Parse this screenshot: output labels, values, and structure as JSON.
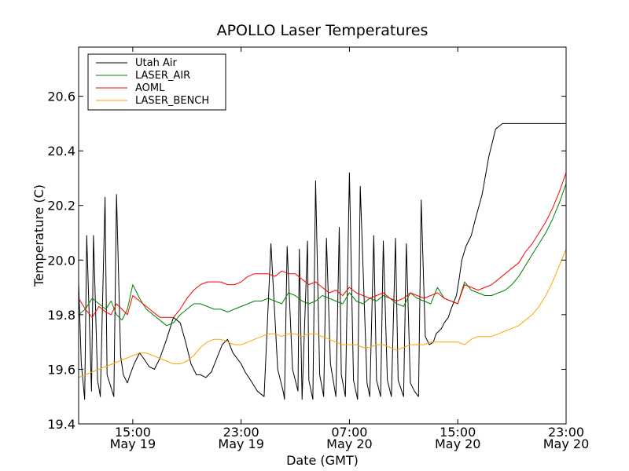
{
  "chart_data": {
    "type": "line",
    "title": "APOLLO Laser Temperatures",
    "xlabel": "Date (GMT)",
    "ylabel": "Temperature (C)",
    "xlim": [
      11.0,
      47.0
    ],
    "ylim": [
      19.4,
      20.78
    ],
    "yticks": [
      19.4,
      19.6,
      19.8,
      20.0,
      20.2,
      20.4,
      20.6
    ],
    "ytick_labels": [
      "19.4",
      "19.6",
      "19.8",
      "20.0",
      "20.2",
      "20.4",
      "20.6"
    ],
    "xticks": [
      {
        "pos": 15,
        "time": "15:00",
        "date": "May 19"
      },
      {
        "pos": 23,
        "time": "23:00",
        "date": "May 19"
      },
      {
        "pos": 31,
        "time": "07:00",
        "date": "May 20"
      },
      {
        "pos": 39,
        "time": "15:00",
        "date": "May 20"
      },
      {
        "pos": 47,
        "time": "23:00",
        "date": "May 20"
      }
    ],
    "legend_position": "top-left",
    "series": [
      {
        "name": "Utah Air",
        "color": "#000000",
        "x": [
          11.0,
          11.2,
          11.45,
          11.6,
          11.95,
          12.1,
          12.4,
          12.6,
          12.95,
          13.1,
          13.6,
          13.8,
          14.1,
          14.3,
          14.6,
          14.8,
          15.1,
          15.5,
          15.8,
          16.2,
          16.6,
          17.0,
          17.5,
          18.0,
          18.5,
          18.9,
          19.3,
          19.7,
          20.0,
          20.4,
          20.8,
          21.2,
          21.6,
          22.0,
          22.4,
          22.7,
          23.0,
          23.3,
          23.7,
          24.2,
          24.7,
          25.2,
          25.7,
          26.1,
          26.2,
          26.4,
          26.8,
          27.2,
          27.3,
          27.5,
          27.9,
          28.0,
          28.3,
          28.5,
          28.8,
          29.1,
          29.3,
          29.6,
          30.0,
          30.25,
          30.4,
          30.7,
          31.0,
          31.3,
          31.6,
          31.8,
          32.3,
          32.5,
          32.8,
          33.0,
          33.3,
          33.5,
          33.8,
          34.1,
          34.4,
          34.6,
          35.0,
          35.2,
          35.5,
          35.8,
          36.1,
          36.3,
          36.6,
          36.9,
          37.2,
          37.4,
          37.8,
          38.0,
          38.3,
          38.5,
          38.9,
          39.1,
          39.3,
          39.6,
          40.0,
          40.3,
          40.8,
          41.3,
          41.8,
          42.3,
          42.8,
          43.3,
          43.8,
          44.2,
          44.6,
          45.0,
          45.4,
          45.8,
          46.2,
          46.6,
          47.0
        ],
        "values": [
          19.92,
          19.62,
          19.49,
          20.09,
          19.52,
          20.09,
          19.56,
          19.5,
          20.23,
          19.58,
          19.5,
          20.24,
          19.65,
          19.58,
          19.55,
          19.58,
          19.62,
          19.66,
          19.64,
          19.61,
          19.6,
          19.64,
          19.71,
          19.79,
          19.77,
          19.7,
          19.62,
          19.58,
          19.58,
          19.57,
          19.59,
          19.64,
          19.69,
          19.71,
          19.66,
          19.64,
          19.62,
          19.59,
          19.56,
          19.52,
          19.5,
          20.06,
          19.6,
          19.52,
          19.49,
          20.05,
          19.6,
          19.52,
          20.04,
          19.49,
          20.07,
          19.56,
          19.49,
          20.29,
          19.58,
          19.5,
          20.08,
          19.62,
          19.5,
          20.12,
          19.58,
          19.5,
          20.32,
          19.56,
          19.49,
          20.27,
          19.55,
          19.5,
          20.09,
          19.56,
          19.5,
          20.07,
          19.56,
          19.5,
          20.08,
          19.56,
          19.5,
          20.06,
          19.55,
          19.52,
          19.5,
          20.22,
          19.72,
          19.69,
          19.7,
          19.73,
          19.75,
          19.77,
          19.79,
          19.82,
          19.87,
          19.93,
          20.0,
          20.05,
          20.09,
          20.15,
          20.24,
          20.38,
          20.48,
          20.5,
          20.5,
          20.5,
          20.5,
          20.5,
          20.5,
          20.5,
          20.5,
          20.5,
          20.5,
          20.5,
          20.5
        ]
      },
      {
        "name": "LASER_AIR",
        "color": "#008000",
        "x": [
          11.0,
          11.5,
          12.0,
          12.5,
          13.0,
          13.4,
          13.8,
          14.2,
          14.6,
          15.0,
          15.5,
          16.0,
          16.5,
          17.0,
          17.5,
          18.0,
          18.5,
          19.0,
          19.5,
          20.0,
          20.5,
          21.0,
          21.5,
          22.0,
          22.5,
          23.0,
          23.5,
          24.0,
          24.5,
          25.0,
          25.5,
          26.0,
          26.5,
          27.0,
          27.5,
          28.0,
          28.5,
          29.0,
          29.5,
          30.0,
          30.5,
          31.0,
          31.5,
          32.0,
          32.5,
          33.0,
          33.5,
          34.0,
          34.5,
          35.0,
          35.5,
          36.0,
          36.5,
          37.0,
          37.5,
          38.0,
          38.5,
          39.0,
          39.5,
          40.0,
          40.5,
          41.0,
          41.5,
          42.0,
          42.5,
          43.0,
          43.5,
          44.0,
          44.5,
          45.0,
          45.5,
          46.0,
          46.5,
          47.0
        ],
        "values": [
          19.8,
          19.82,
          19.86,
          19.84,
          19.82,
          19.85,
          19.8,
          19.78,
          19.82,
          19.91,
          19.86,
          19.82,
          19.8,
          19.78,
          19.76,
          19.77,
          19.8,
          19.82,
          19.84,
          19.84,
          19.83,
          19.82,
          19.82,
          19.81,
          19.82,
          19.83,
          19.84,
          19.85,
          19.85,
          19.86,
          19.85,
          19.84,
          19.88,
          19.87,
          19.85,
          19.84,
          19.85,
          19.87,
          19.86,
          19.85,
          19.84,
          19.88,
          19.85,
          19.84,
          19.86,
          19.85,
          19.87,
          19.86,
          19.84,
          19.83,
          19.88,
          19.86,
          19.85,
          19.84,
          19.9,
          19.86,
          19.85,
          19.84,
          19.92,
          19.89,
          19.88,
          19.87,
          19.87,
          19.88,
          19.89,
          19.91,
          19.94,
          19.98,
          20.02,
          20.06,
          20.1,
          20.15,
          20.21,
          20.28
        ]
      },
      {
        "name": "AOML",
        "color": "#ff0000",
        "x": [
          11.0,
          11.5,
          12.0,
          12.5,
          13.0,
          13.4,
          13.8,
          14.2,
          14.6,
          15.0,
          15.5,
          16.0,
          16.5,
          17.0,
          17.5,
          18.0,
          18.5,
          19.0,
          19.5,
          20.0,
          20.5,
          21.0,
          21.5,
          22.0,
          22.5,
          23.0,
          23.5,
          24.0,
          24.5,
          25.0,
          25.5,
          26.0,
          26.5,
          27.0,
          27.5,
          28.0,
          28.5,
          29.0,
          29.5,
          30.0,
          30.5,
          31.0,
          31.5,
          32.0,
          32.5,
          33.0,
          33.5,
          34.0,
          34.5,
          35.0,
          35.5,
          36.0,
          36.5,
          37.0,
          37.5,
          38.0,
          38.5,
          39.0,
          39.5,
          40.0,
          40.5,
          41.0,
          41.5,
          42.0,
          42.5,
          43.0,
          43.5,
          44.0,
          44.5,
          45.0,
          45.5,
          46.0,
          46.5,
          47.0
        ],
        "values": [
          19.86,
          19.82,
          19.79,
          19.83,
          19.81,
          19.8,
          19.84,
          19.82,
          19.8,
          19.87,
          19.85,
          19.83,
          19.81,
          19.79,
          19.79,
          19.79,
          19.82,
          19.86,
          19.89,
          19.91,
          19.92,
          19.92,
          19.92,
          19.91,
          19.91,
          19.92,
          19.94,
          19.95,
          19.95,
          19.95,
          19.94,
          19.96,
          19.95,
          19.95,
          19.93,
          19.91,
          19.92,
          19.9,
          19.88,
          19.89,
          19.87,
          19.9,
          19.88,
          19.87,
          19.86,
          19.87,
          19.88,
          19.86,
          19.85,
          19.86,
          19.88,
          19.87,
          19.86,
          19.87,
          19.88,
          19.86,
          19.85,
          19.84,
          19.91,
          19.9,
          19.89,
          19.9,
          19.91,
          19.93,
          19.95,
          19.97,
          19.99,
          20.03,
          20.06,
          20.1,
          20.14,
          20.19,
          20.25,
          20.32
        ]
      },
      {
        "name": "LASER_BENCH",
        "color": "#ffa500",
        "x": [
          11.0,
          11.5,
          12.0,
          12.5,
          13.0,
          13.5,
          14.0,
          14.5,
          15.0,
          15.5,
          16.0,
          16.5,
          17.0,
          17.5,
          18.0,
          18.5,
          19.0,
          19.5,
          20.0,
          20.5,
          21.0,
          21.5,
          22.0,
          22.5,
          23.0,
          23.5,
          24.0,
          24.5,
          25.0,
          25.5,
          26.0,
          26.5,
          27.0,
          27.5,
          28.0,
          28.5,
          29.0,
          29.5,
          30.0,
          30.5,
          31.0,
          31.5,
          32.0,
          32.5,
          33.0,
          33.5,
          34.0,
          34.5,
          35.0,
          35.5,
          36.0,
          36.5,
          37.0,
          37.5,
          38.0,
          38.5,
          39.0,
          39.5,
          40.0,
          40.5,
          41.0,
          41.5,
          42.0,
          42.5,
          43.0,
          43.5,
          44.0,
          44.5,
          45.0,
          45.5,
          46.0,
          46.5,
          47.0
        ],
        "values": [
          19.57,
          19.58,
          19.59,
          19.6,
          19.61,
          19.62,
          19.63,
          19.64,
          19.65,
          19.66,
          19.66,
          19.65,
          19.64,
          19.63,
          19.62,
          19.62,
          19.63,
          19.65,
          19.68,
          19.7,
          19.71,
          19.71,
          19.7,
          19.69,
          19.69,
          19.7,
          19.71,
          19.72,
          19.73,
          19.73,
          19.72,
          19.73,
          19.73,
          19.72,
          19.73,
          19.73,
          19.72,
          19.71,
          19.7,
          19.69,
          19.69,
          19.69,
          19.68,
          19.68,
          19.69,
          19.69,
          19.68,
          19.67,
          19.68,
          19.69,
          19.69,
          19.69,
          19.7,
          19.7,
          19.7,
          19.7,
          19.7,
          19.69,
          19.71,
          19.72,
          19.72,
          19.72,
          19.73,
          19.74,
          19.75,
          19.76,
          19.78,
          19.8,
          19.83,
          19.87,
          19.92,
          19.98,
          20.04
        ]
      }
    ]
  }
}
